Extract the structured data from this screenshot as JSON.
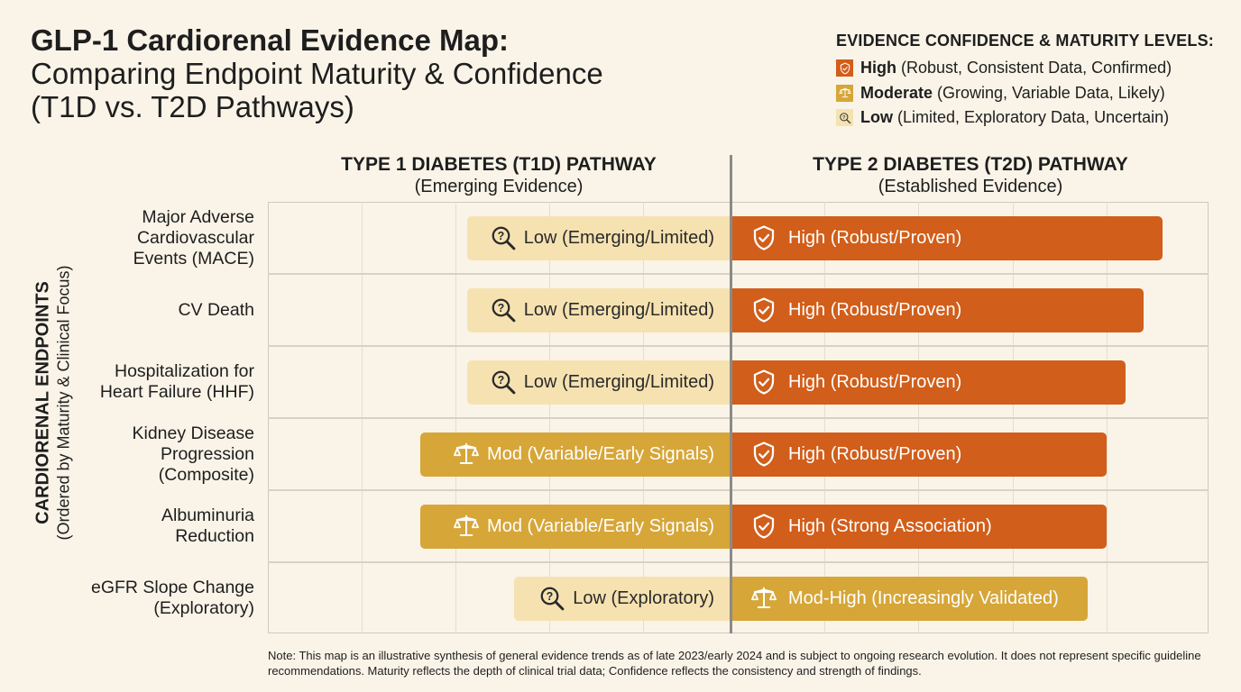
{
  "title": {
    "line1": "GLP-1 Cardiorenal Evidence Map:",
    "line2": "Comparing Endpoint Maturity & Confidence",
    "line3": "(T1D vs. T2D Pathways)"
  },
  "legend": {
    "heading": "EVIDENCE CONFIDENCE & MATURITY LEVELS:",
    "items": [
      {
        "level": "High",
        "desc": "(Robust, Consistent Data, Confirmed)",
        "icon": "shield-check-icon",
        "color": "#d15e1a"
      },
      {
        "level": "Moderate",
        "desc": "(Growing, Variable Data, Likely)",
        "icon": "scales-icon",
        "color": "#d6a638"
      },
      {
        "level": "Low",
        "desc": "(Limited, Exploratory Data, Uncertain)",
        "icon": "magnifier-question-icon",
        "color": "#f6e2b1"
      }
    ]
  },
  "chart_data": {
    "type": "bar",
    "orientation": "horizontal-diverging",
    "ylabel": "CARDIORENAL ENDPOINTS",
    "ylabel_sub": "(Ordered by Maturity & Clinical Focus)",
    "grid": true,
    "columns": [
      {
        "title": "TYPE 1 DIABETES (T1D) PATHWAY",
        "subtitle": "(Emerging Evidence)"
      },
      {
        "title": "TYPE 2 DIABETES (T2D) PATHWAY",
        "subtitle": "(Established Evidence)"
      }
    ],
    "categories": [
      "Major Adverse\nCardiovascular\nEvents (MACE)",
      "CV Death",
      "Hospitalization for\nHeart Failure (HHF)",
      "Kidney Disease\nProgression\n(Composite)",
      "Albuminuria\nReduction",
      "eGFR Slope Change\n(Exploratory)"
    ],
    "series": [
      {
        "name": "TYPE 1 DIABETES (T1D) PATHWAY",
        "values": [
          2.8,
          2.8,
          2.8,
          3.3,
          3.3,
          2.3
        ],
        "levels": [
          "low",
          "low",
          "low",
          "moderate",
          "moderate",
          "low"
        ],
        "labels": [
          "Low (Emerging/Limited)",
          "Low (Emerging/Limited)",
          "Low (Emerging/Limited)",
          "Mod (Variable/Early Signals)",
          "Mod (Variable/Early Signals)",
          "Low (Exploratory)"
        ]
      },
      {
        "name": "TYPE 2 DIABETES (T2D) PATHWAY",
        "values": [
          4.6,
          4.4,
          4.2,
          4.0,
          4.0,
          3.8
        ],
        "levels": [
          "high",
          "high",
          "high",
          "high",
          "high",
          "moderate"
        ],
        "labels": [
          "High (Robust/Proven)",
          "High (Robust/Proven)",
          "High (Robust/Proven)",
          "High (Robust/Proven)",
          "High (Strong Association)",
          "Mod-High (Increasingly Validated)"
        ]
      }
    ],
    "xlim": [
      0,
      5
    ]
  },
  "note": "Note: This map is an illustrative synthesis of general evidence trends as of late 2023/early 2024 and is subject to ongoing research evolution. It does not represent specific guideline recommendations. Maturity reflects the depth of clinical trial data; Confidence reflects the consistency and strength of findings."
}
